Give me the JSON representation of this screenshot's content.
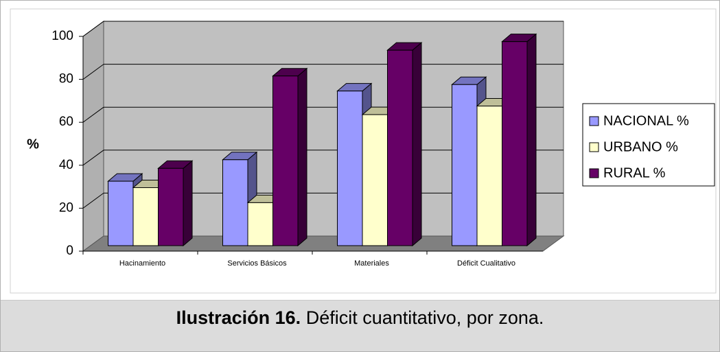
{
  "chart_data": {
    "type": "bar3d",
    "categories": [
      "Hacinamiento",
      "Servicios Básicos",
      "Materiales",
      "Déficit Cualitativo"
    ],
    "series": [
      {
        "name": "NACIONAL %",
        "color": "#9999ff",
        "values": [
          30,
          40,
          72,
          75
        ]
      },
      {
        "name": "URBANO %",
        "color": "#ffffcc",
        "values": [
          27,
          20,
          61,
          65
        ]
      },
      {
        "name": "RURAL %",
        "color": "#660066",
        "values": [
          36,
          79,
          91,
          95
        ]
      }
    ],
    "ylim": [
      0,
      100
    ],
    "yticks": [
      0,
      20,
      40,
      60,
      80,
      100
    ],
    "y_label": "%",
    "grid": true,
    "legend": "right"
  },
  "caption": {
    "label": "Ilustración 16.",
    "text": "Déficit cuantitativo, por zona."
  }
}
